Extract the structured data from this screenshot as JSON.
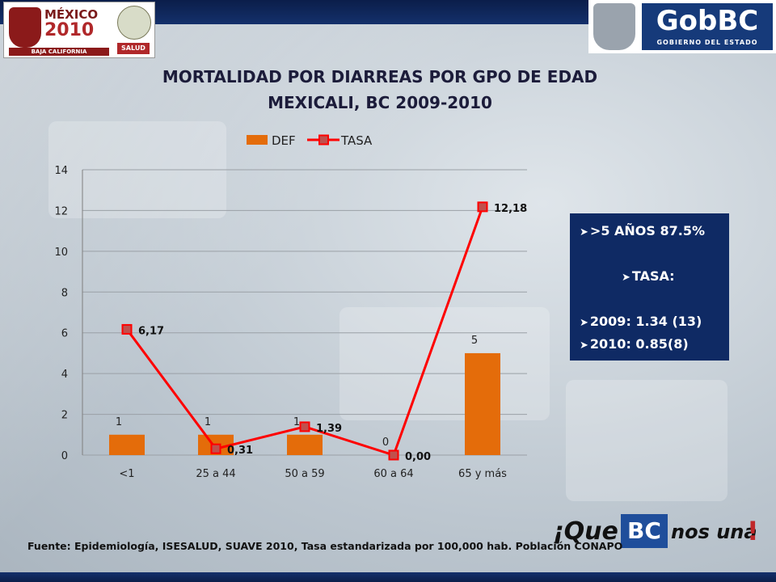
{
  "header": {
    "left_logo": {
      "line1": "MÉXICO",
      "line2": "2010",
      "state": "BAJA CALIFORNIA",
      "agency": "SALUD"
    },
    "right_logo": {
      "title": "GobBC",
      "subtitle": "GOBIERNO DEL ESTADO"
    }
  },
  "title_line1": "MORTALIDAD POR DIARREAS POR GPO DE EDAD",
  "title_line2": "MEXICALI, BC 2009-2010",
  "chart_data": {
    "type": "bar",
    "categories": [
      "<1",
      "25 a 44",
      "50 a 59",
      "60 a 64",
      "65 y más"
    ],
    "series": [
      {
        "name": "DEF",
        "type": "bar",
        "values": [
          1,
          1,
          1,
          0,
          5
        ],
        "labels": [
          "1",
          "1",
          "1",
          "0",
          "5"
        ],
        "color": "#e46c0a"
      },
      {
        "name": "TASA",
        "type": "line",
        "values": [
          6.17,
          0.31,
          1.39,
          0.0,
          12.18
        ],
        "labels": [
          "6,17",
          "0,31",
          "1,39",
          "0,00",
          "12,18"
        ],
        "color": "#ff0000"
      }
    ],
    "ylim": [
      0,
      14
    ],
    "yticks": [
      0,
      2,
      4,
      6,
      8,
      10,
      12,
      14
    ],
    "grid": true,
    "legend": "top"
  },
  "info_box": {
    "items": [
      ">5 AÑOS 87.5%",
      "TASA:",
      "2009: 1.34 (13)",
      "2010:  0.85(8)"
    ]
  },
  "footer": "Fuente: Epidemiología, ISESALUD, SUAVE 2010, Tasa estandarizada  por 100,000 hab. Población CONAPO",
  "slogan": {
    "part1": "¡Que",
    "part2": "BC",
    "part3": "nos una",
    "part4": "!"
  },
  "colors": {
    "bar": "#e46c0a",
    "line": "#ff0000",
    "marker_fill": "#c0504d",
    "info_bg": "#0f2a64"
  }
}
